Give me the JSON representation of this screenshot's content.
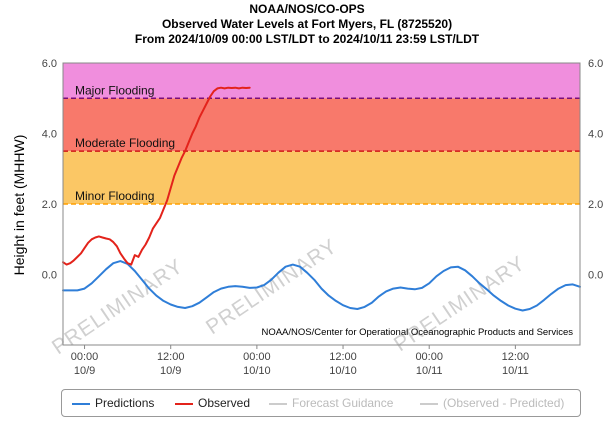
{
  "header": {
    "line1": "NOAA/NOS/CO-OPS",
    "line2": "Observed Water Levels at Fort Myers, FL (8725520)",
    "line3": "From 2024/10/09 00:00 LST/LDT to 2024/10/11 23:59 LST/LDT"
  },
  "chart_data": {
    "type": "line",
    "title": "Observed Water Levels at Fort Myers, FL (8725520)",
    "xlabel": "",
    "ylabel": "Height in feet (MHHW)",
    "xlim": [
      -3,
      69
    ],
    "ylim": [
      -2.0,
      6.0
    ],
    "x_unit": "hours since 2024/10/09 00:00",
    "y_ticks": [
      {
        "value": 6.0,
        "label": "6.0"
      },
      {
        "value": 4.0,
        "label": "4.0"
      },
      {
        "value": 2.0,
        "label": "2.0"
      },
      {
        "value": 0.0,
        "label": "0.0"
      }
    ],
    "x_ticks": [
      {
        "value": 0,
        "time": "00:00",
        "date": "10/9"
      },
      {
        "value": 12,
        "time": "12:00",
        "date": "10/9"
      },
      {
        "value": 24,
        "time": "00:00",
        "date": "10/10"
      },
      {
        "value": 36,
        "time": "12:00",
        "date": "10/10"
      },
      {
        "value": 48,
        "time": "00:00",
        "date": "10/11"
      },
      {
        "value": 60,
        "time": "12:00",
        "date": "10/11"
      }
    ],
    "flood_bands": [
      {
        "name": "Major Flooding",
        "from": 5.0,
        "to": 6.0,
        "color": "#f08edd",
        "line_color": "#7a0e7a"
      },
      {
        "name": "Moderate Flooding",
        "from": 3.5,
        "to": 5.0,
        "color": "#f8796b",
        "line_color": "#d01818"
      },
      {
        "name": "Minor Flooding",
        "from": 2.0,
        "to": 3.5,
        "color": "#fbc765",
        "line_color": "#ff9f00"
      }
    ],
    "series": [
      {
        "name": "Predictions",
        "color": "#2f7ed8",
        "x": [
          -3,
          -1,
          0,
          1,
          2,
          3,
          4,
          5,
          6,
          7,
          8,
          9,
          10,
          11,
          12,
          13,
          14,
          15,
          16,
          17,
          18,
          19,
          20,
          21,
          22,
          23,
          24,
          25,
          26,
          27,
          28,
          29,
          30,
          31,
          32,
          33,
          34,
          35,
          36,
          37,
          38,
          39,
          40,
          41,
          42,
          43,
          44,
          45,
          46,
          47,
          48,
          49,
          50,
          51,
          52,
          53,
          54,
          55,
          56,
          57,
          58,
          59,
          60,
          61,
          62,
          63,
          64,
          65,
          66,
          67,
          68,
          69
        ],
        "values": [
          -0.45,
          -0.45,
          -0.4,
          -0.25,
          -0.05,
          0.15,
          0.32,
          0.38,
          0.3,
          0.1,
          -0.15,
          -0.4,
          -0.6,
          -0.75,
          -0.85,
          -0.92,
          -0.95,
          -0.9,
          -0.8,
          -0.65,
          -0.5,
          -0.4,
          -0.35,
          -0.33,
          -0.35,
          -0.38,
          -0.37,
          -0.3,
          -0.15,
          0.05,
          0.22,
          0.28,
          0.22,
          0.05,
          -0.15,
          -0.4,
          -0.6,
          -0.75,
          -0.87,
          -0.95,
          -0.98,
          -0.92,
          -0.8,
          -0.62,
          -0.48,
          -0.4,
          -0.37,
          -0.4,
          -0.42,
          -0.38,
          -0.25,
          -0.05,
          0.1,
          0.2,
          0.22,
          0.12,
          -0.05,
          -0.25,
          -0.42,
          -0.6,
          -0.75,
          -0.88,
          -0.97,
          -1.02,
          -0.98,
          -0.88,
          -0.72,
          -0.55,
          -0.4,
          -0.3,
          -0.28,
          -0.35
        ]
      },
      {
        "name": "Observed",
        "color": "#e3231b",
        "x": [
          -3,
          -2.5,
          -2,
          -1.5,
          -1,
          -0.5,
          0,
          0.5,
          1,
          1.5,
          2,
          2.5,
          3,
          3.5,
          4,
          4.5,
          5,
          5.5,
          6,
          6.5,
          7,
          7.5,
          8,
          8.5,
          9,
          9.5,
          10,
          10.5,
          11,
          11.5,
          12,
          12.5,
          13,
          13.5,
          14,
          14.5,
          15,
          15.5,
          16,
          16.5,
          17,
          17.5,
          18,
          18.5,
          19,
          19.5,
          20,
          20.5,
          21,
          21.5,
          22,
          22.5,
          23
        ],
        "values": [
          0.35,
          0.28,
          0.32,
          0.4,
          0.5,
          0.6,
          0.75,
          0.9,
          1.0,
          1.05,
          1.08,
          1.05,
          1.02,
          1.0,
          0.92,
          0.8,
          0.6,
          0.45,
          0.32,
          0.28,
          0.55,
          0.5,
          0.7,
          0.85,
          1.05,
          1.3,
          1.45,
          1.6,
          1.85,
          2.1,
          2.45,
          2.8,
          3.05,
          3.3,
          3.5,
          3.75,
          4.0,
          4.2,
          4.45,
          4.65,
          4.85,
          5.05,
          5.2,
          5.28,
          5.3,
          5.28,
          5.3,
          5.29,
          5.3,
          5.28,
          5.3,
          5.29,
          5.3
        ]
      },
      {
        "name": "Forecast Guidance",
        "color": "#cccccc",
        "x": [],
        "values": []
      },
      {
        "name": "(Observed - Predicted)",
        "color": "#cccccc",
        "x": [],
        "values": []
      }
    ],
    "annotations": {
      "watermark": "PRELIMINARY",
      "credit": "NOAA/NOS/Center for Operational Oceanographic Products and Services"
    }
  },
  "legend": {
    "items": [
      {
        "label": "Predictions",
        "color": "#2f7ed8",
        "active": true
      },
      {
        "label": "Observed",
        "color": "#e3231b",
        "active": true
      },
      {
        "label": "Forecast Guidance",
        "color": "#cccccc",
        "active": false
      },
      {
        "label": "(Observed - Predicted)",
        "color": "#cccccc",
        "active": false
      }
    ]
  }
}
